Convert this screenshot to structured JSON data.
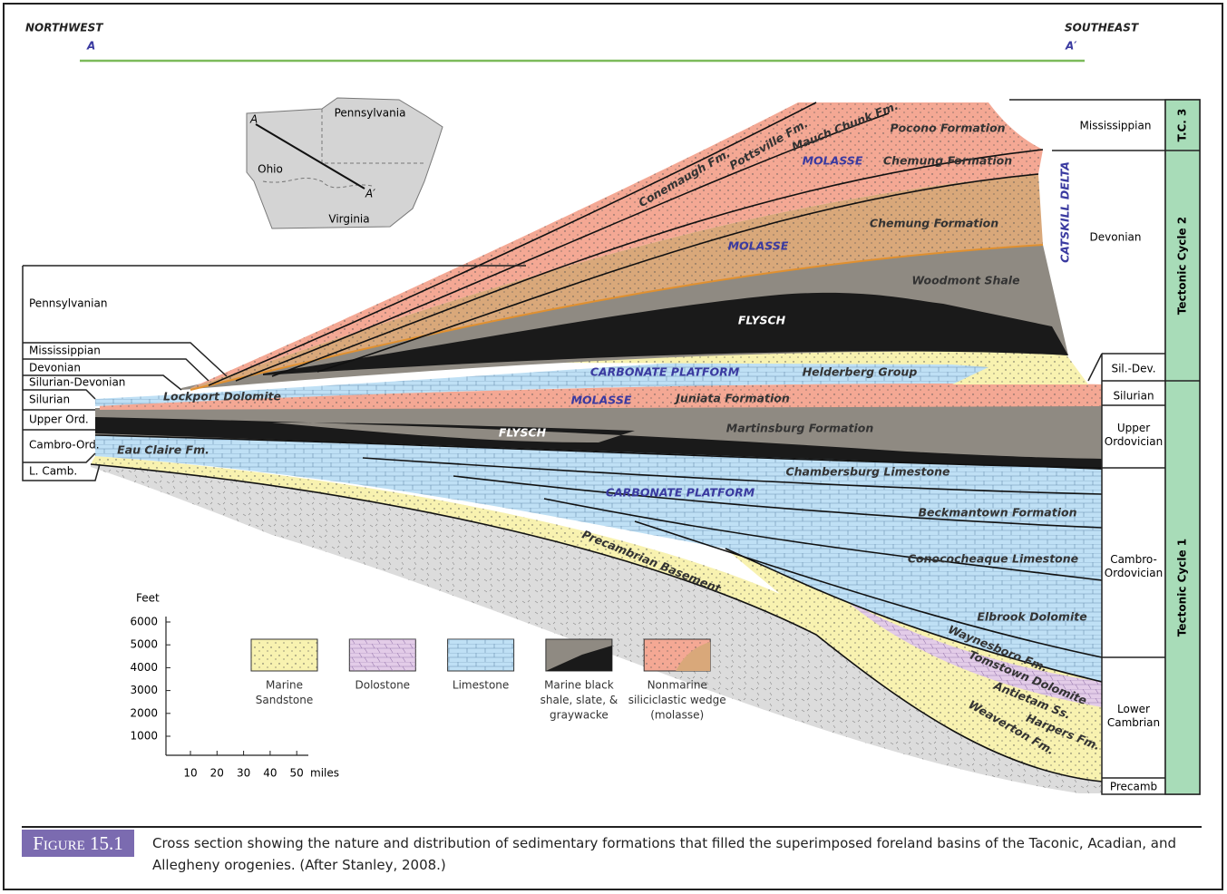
{
  "header": {
    "left_direction": "NORTHWEST",
    "left_point": "A",
    "right_direction": "SOUTHEAST",
    "right_point": "A′"
  },
  "map": {
    "labels": [
      "Pennsylvania",
      "Ohio",
      "Virginia"
    ],
    "point_a": "A",
    "point_a_prime": "A′"
  },
  "formations": [
    "Conemaugh Fm.",
    "Pottsville Fm.",
    "Mauch Chunk Fm.",
    "Pocono Formation",
    "MOLASSE",
    "Chemung Formation",
    "Chemung Formation",
    "MOLASSE",
    "Woodmont Shale",
    "FLYSCH",
    "CARBONATE PLATFORM",
    "Helderberg Group",
    "Lockport Dolomite",
    "MOLASSE",
    "Juniata Formation",
    "FLYSCH",
    "Martinsburg Formation",
    "Eau Claire Fm.",
    "Chambersburg Limestone",
    "CARBONATE PLATFORM",
    "Beckmantown Formation",
    "Conococheaque Limestone",
    "Precambrian Basement",
    "Elbrook Dolomite",
    "Waynesboro Fm.",
    "Tomstown Dolomite",
    "Antietam Ss.",
    "Harpers Fm.",
    "Weaverton Fm."
  ],
  "side_label": "CATSKILL DELTA",
  "left_periods": [
    "Pennsylvanian",
    "Mississippian",
    "Devonian",
    "Silurian-Devonian",
    "Silurian",
    "Upper Ord.",
    "Cambro-Ord.",
    "L. Camb."
  ],
  "right_periods": [
    [
      "Mississippian"
    ],
    [
      "Devonian"
    ],
    [
      "Sil.-Dev."
    ],
    [
      "Silurian"
    ],
    [
      "Upper",
      "Ordovician"
    ],
    [
      "Cambro-",
      "Ordovician"
    ],
    [
      "Lower",
      "Cambrian"
    ],
    [
      "Precamb"
    ]
  ],
  "tectonic_cycles": [
    "T.C. 3",
    "Tectonic Cycle 2",
    "Tectonic Cycle 1"
  ],
  "scale": {
    "y_unit": "Feet",
    "y_ticks": [
      6000,
      5000,
      4000,
      3000,
      2000,
      1000
    ],
    "x_ticks": [
      10,
      20,
      30,
      40,
      50
    ],
    "x_unit": "miles"
  },
  "legend": [
    {
      "lines": [
        "Marine",
        "Sandstone"
      ]
    },
    {
      "lines": [
        "Dolostone"
      ]
    },
    {
      "lines": [
        "Limestone"
      ]
    },
    {
      "lines": [
        "Marine black",
        "shale, slate, &",
        "graywacke"
      ]
    },
    {
      "lines": [
        "Nonmarine",
        "siliciclastic wedge",
        "(molasse)"
      ]
    }
  ],
  "caption": {
    "label": "Figure 15.1",
    "text": "Cross section showing the nature and distribution of sedimentary formations that filled the superimposed foreland basins of the Taconic, Acadian, and Allegheny orogenies. (After Stanley, 2008.)"
  }
}
